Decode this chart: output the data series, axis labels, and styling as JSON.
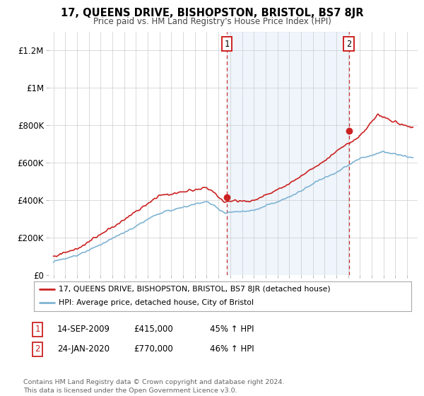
{
  "title": "17, QUEENS DRIVE, BISHOPSTON, BRISTOL, BS7 8JR",
  "subtitle": "Price paid vs. HM Land Registry's House Price Index (HPI)",
  "hpi_color": "#7fb3d3",
  "price_color": "#cc2222",
  "ylim": [
    0,
    1300000
  ],
  "yticks": [
    0,
    200000,
    400000,
    600000,
    800000,
    1000000,
    1200000
  ],
  "ytick_labels": [
    "£0",
    "£200K",
    "£400K",
    "£600K",
    "£800K",
    "£1M",
    "£1.2M"
  ],
  "sale1_year": 2009.71,
  "sale1_price": 415000,
  "sale2_year": 2020.07,
  "sale2_price": 770000,
  "legend_line1": "17, QUEENS DRIVE, BISHOPSTON, BRISTOL, BS7 8JR (detached house)",
  "legend_line2": "HPI: Average price, detached house, City of Bristol",
  "note1_label": "1",
  "note1_date": "14-SEP-2009",
  "note1_price": "£415,000",
  "note1_hpi": "45% ↑ HPI",
  "note2_label": "2",
  "note2_date": "24-JAN-2020",
  "note2_price": "£770,000",
  "note2_hpi": "46% ↑ HPI",
  "footer": "Contains HM Land Registry data © Crown copyright and database right 2024.\nThis data is licensed under the Open Government Licence v3.0.",
  "bg_color": "#ffffff",
  "grid_color": "#cccccc",
  "shade_color": "#ddeeff"
}
